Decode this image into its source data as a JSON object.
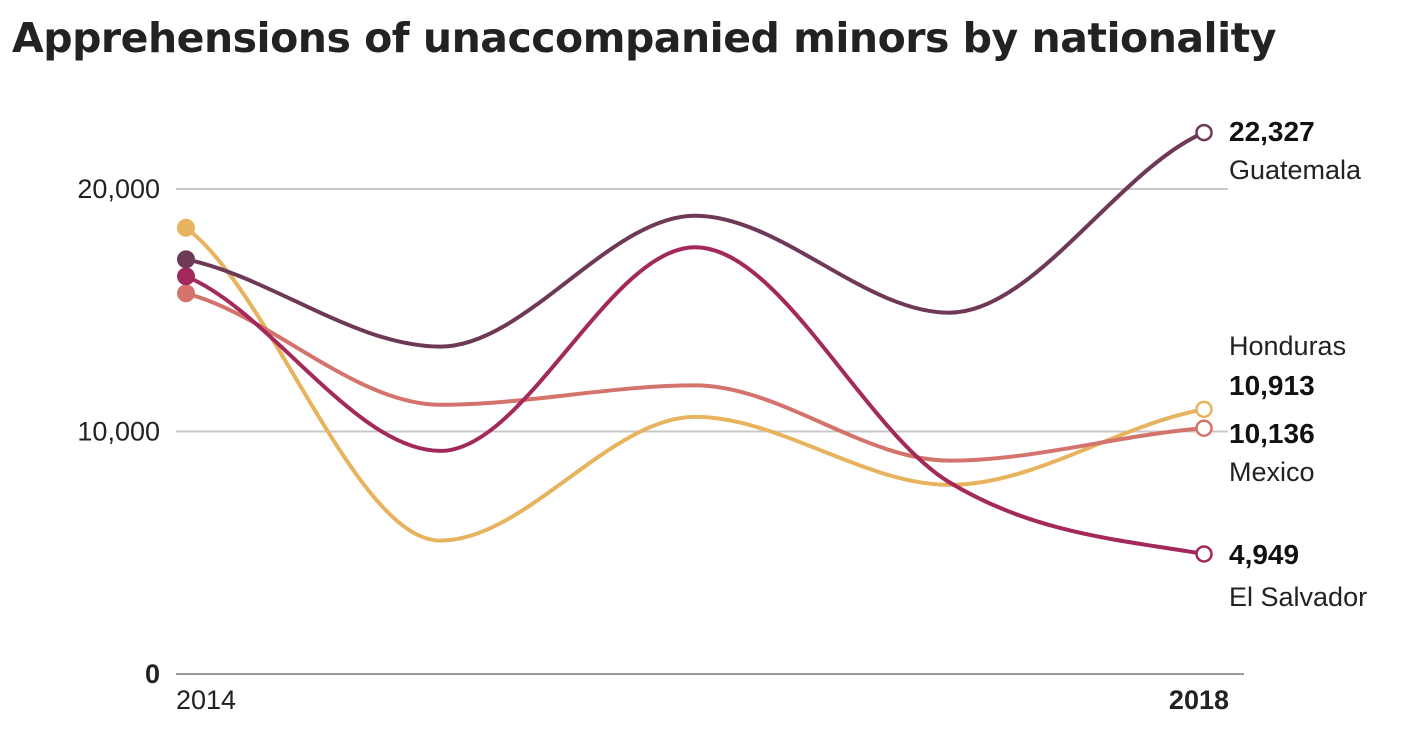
{
  "chart_data": {
    "type": "line",
    "title": "Apprehensions of unaccompanied minors by nationality",
    "xlabel": "",
    "ylabel": "",
    "x": [
      2014,
      2015,
      2016,
      2017,
      2018
    ],
    "x_tick_labels": [
      "2014",
      "2018"
    ],
    "y_tick_labels": [
      "0",
      "10,000",
      "20,000"
    ],
    "y_ticks": [
      0,
      10000,
      20000
    ],
    "ylim": [
      0,
      23000
    ],
    "grid": true,
    "legend": "direct labels at line ends (right)",
    "series": [
      {
        "name": "Guatemala",
        "values": [
          17100,
          13500,
          18900,
          14900,
          22327
        ],
        "end_label": "22,327",
        "color": "#6e3857"
      },
      {
        "name": "El Salvador",
        "values": [
          16400,
          9200,
          17600,
          7900,
          4949
        ],
        "end_label": "4,949",
        "color": "#a3295a"
      },
      {
        "name": "Mexico",
        "values": [
          15700,
          11100,
          11900,
          8800,
          10136
        ],
        "end_label": "10,136",
        "color": "#d4736b"
      },
      {
        "name": "Honduras",
        "values": [
          18400,
          5500,
          10600,
          7800,
          10913
        ],
        "end_label": "10,913",
        "color": "#e8b35f"
      }
    ]
  }
}
